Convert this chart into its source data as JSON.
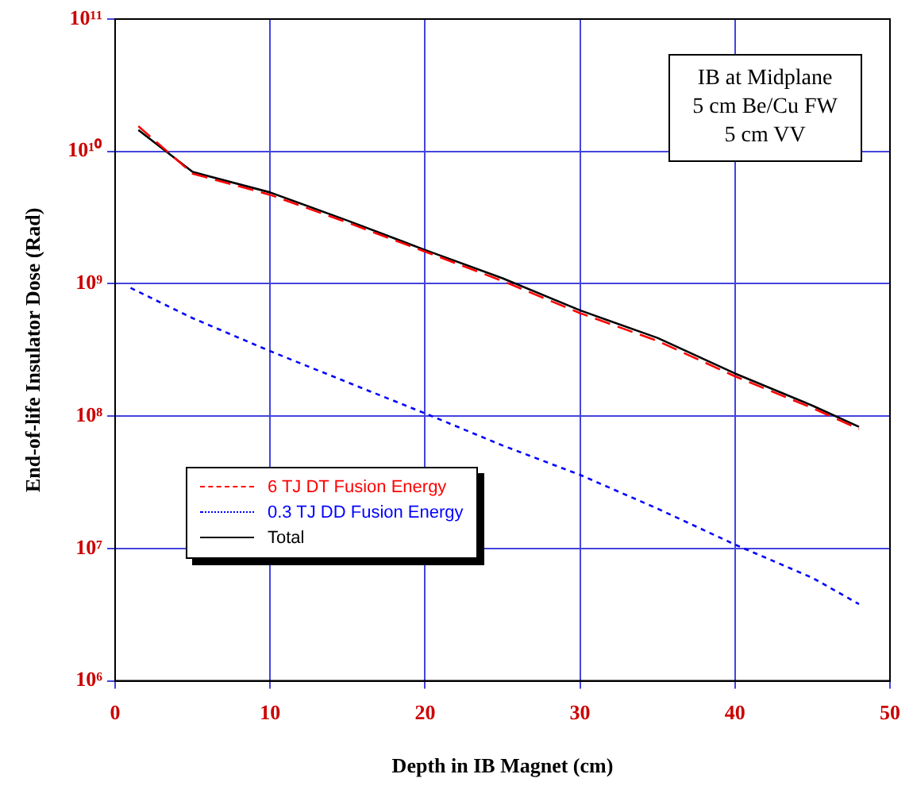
{
  "chart_data": {
    "type": "line",
    "xlabel": "Depth in IB Magnet (cm)",
    "ylabel": "End-of-life Insulator Dose (Rad)",
    "log": "y",
    "xlim": [
      0,
      50
    ],
    "xticks": [
      0,
      10,
      20,
      30,
      40,
      50
    ],
    "ylim": [
      1000000,
      100000000000
    ],
    "yticks": [
      {
        "value": 1000000,
        "label": "10⁶"
      },
      {
        "value": 10000000,
        "label": "10⁷"
      },
      {
        "value": 100000000,
        "label": "10⁸"
      },
      {
        "value": 1000000000,
        "label": "10⁹"
      },
      {
        "value": 10000000000,
        "label": "10¹⁰"
      },
      {
        "value": 100000000000,
        "label": "10¹¹"
      }
    ],
    "grid": true,
    "legend": "bottom left",
    "marker": "none",
    "annotations": [
      "IB at Midplane",
      "5 cm Be/Cu FW",
      "5 cm VV"
    ],
    "series": [
      {
        "name": "6 TJ DT Fusion Energy",
        "color": "#ff0000",
        "line_style": "dashed",
        "x": [
          1.5,
          5,
          10,
          15,
          20,
          25,
          30,
          35,
          40,
          45,
          48
        ],
        "values": [
          15500000000,
          6800000000,
          4700000000,
          2900000000,
          1750000000,
          1050000000,
          600000000,
          370000000,
          200000000,
          115000000,
          80000000
        ]
      },
      {
        "name": "0.3 TJ DD Fusion Energy",
        "color": "#0000ff",
        "line_style": "dotted",
        "x": [
          1,
          5,
          10,
          15,
          20,
          25,
          30,
          35,
          40,
          45,
          48
        ],
        "values": [
          930000000,
          550000000,
          310000000,
          180000000,
          105000000,
          60000000,
          36000000,
          20000000,
          10700000,
          6000000,
          3800000
        ]
      },
      {
        "name": "Total",
        "color": "#000000",
        "line_style": "solid",
        "x": [
          1.5,
          5,
          10,
          15,
          20,
          25,
          30,
          35,
          40,
          45,
          48
        ],
        "values": [
          14500000000,
          7000000000,
          4900000000,
          3000000000,
          1800000000,
          1100000000,
          630000000,
          390000000,
          210000000,
          120000000,
          83000000
        ]
      }
    ]
  }
}
